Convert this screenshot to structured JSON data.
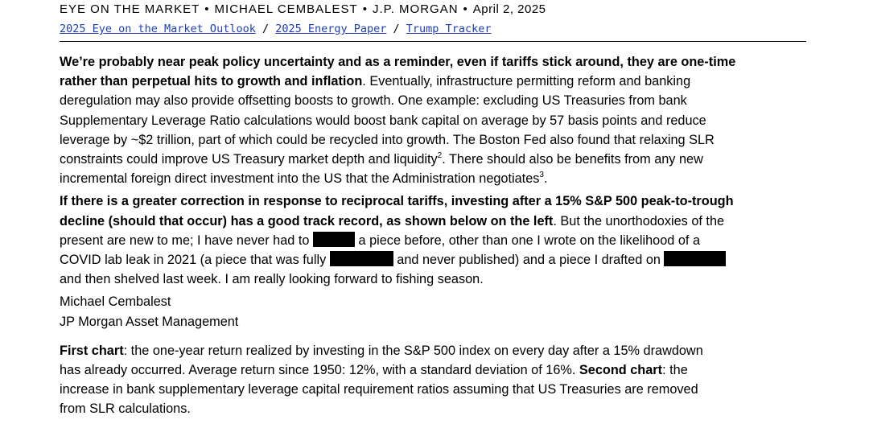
{
  "header": {
    "publication": "EYE ON THE MARKET",
    "author": "MICHAEL CEMBALEST",
    "firm": "J.P. MORGAN",
    "date": "April 2, 2025",
    "separator": "•"
  },
  "links": {
    "items": [
      "2025 Eye on the Market Outlook",
      "2025 Energy Paper",
      "Trump Tracker"
    ],
    "separator": " / "
  },
  "para1": {
    "bold_1": "We’re probably near peak policy uncertainty and as a reminder, even if tariffs stick around, they are one-time",
    "bold_2": "rather than perpetual hits to growth and inflation",
    "l2_rest": ".  Eventually, infrastructure permitting reform and banking",
    "l3": "deregulation may also provide offsetting boosts to growth.  One example: excluding US Treasuries from bank",
    "l4": "Supplementary Leverage Ratio calculations would boost bank capital on average by 57 basis points and reduce",
    "l5": "leverage by ~$2 trillion, part of which could be recycled into growth.  The Boston Fed also found that relaxing SLR",
    "l6": "constraints could improve US Treasury market depth and liquidity",
    "fn2": "2",
    "l6_rest": ".  There should also be benefits from any new",
    "l7": "incremental foreign direct investment into the US that the Administration negotiates",
    "fn3": "3",
    "l7_end": "."
  },
  "para2": {
    "bold_1": "If there is a greater correction in response to reciprocal tariffs, investing after a 15% S&P 500 peak-to-trough",
    "bold_2": "decline (should that occur) has a good track record, as shown below on the left",
    "l2_rest": ".  But the unorthodoxies of the",
    "l3_a": "present are new to me; I have never had to ",
    "l3_b": " a piece before, other than one I wrote on the likelihood of a",
    "l4_a": "COVID lab leak in 2021 (a piece that was fully ",
    "l4_b": " and never published) and a piece I drafted on ",
    "l5": "and then shelved last week.  I am really looking forward to fishing season."
  },
  "signature": {
    "name": "Michael Cembalest",
    "org": "JP Morgan Asset Management"
  },
  "para3": {
    "label1": "First chart",
    "l1_rest": ": the one-year return realized by investing in the S&P 500 index on every day after a 15% drawdown",
    "l2_a": "has already occurred.  Average return since 1950: 12%, with a standard deviation of 16%.  ",
    "label2": "Second chart",
    "l2_b": ": the",
    "l3": "increase in bank supplementary leverage capital requirement ratios assuming that US Treasuries are removed",
    "l4": "from SLR calculations."
  }
}
